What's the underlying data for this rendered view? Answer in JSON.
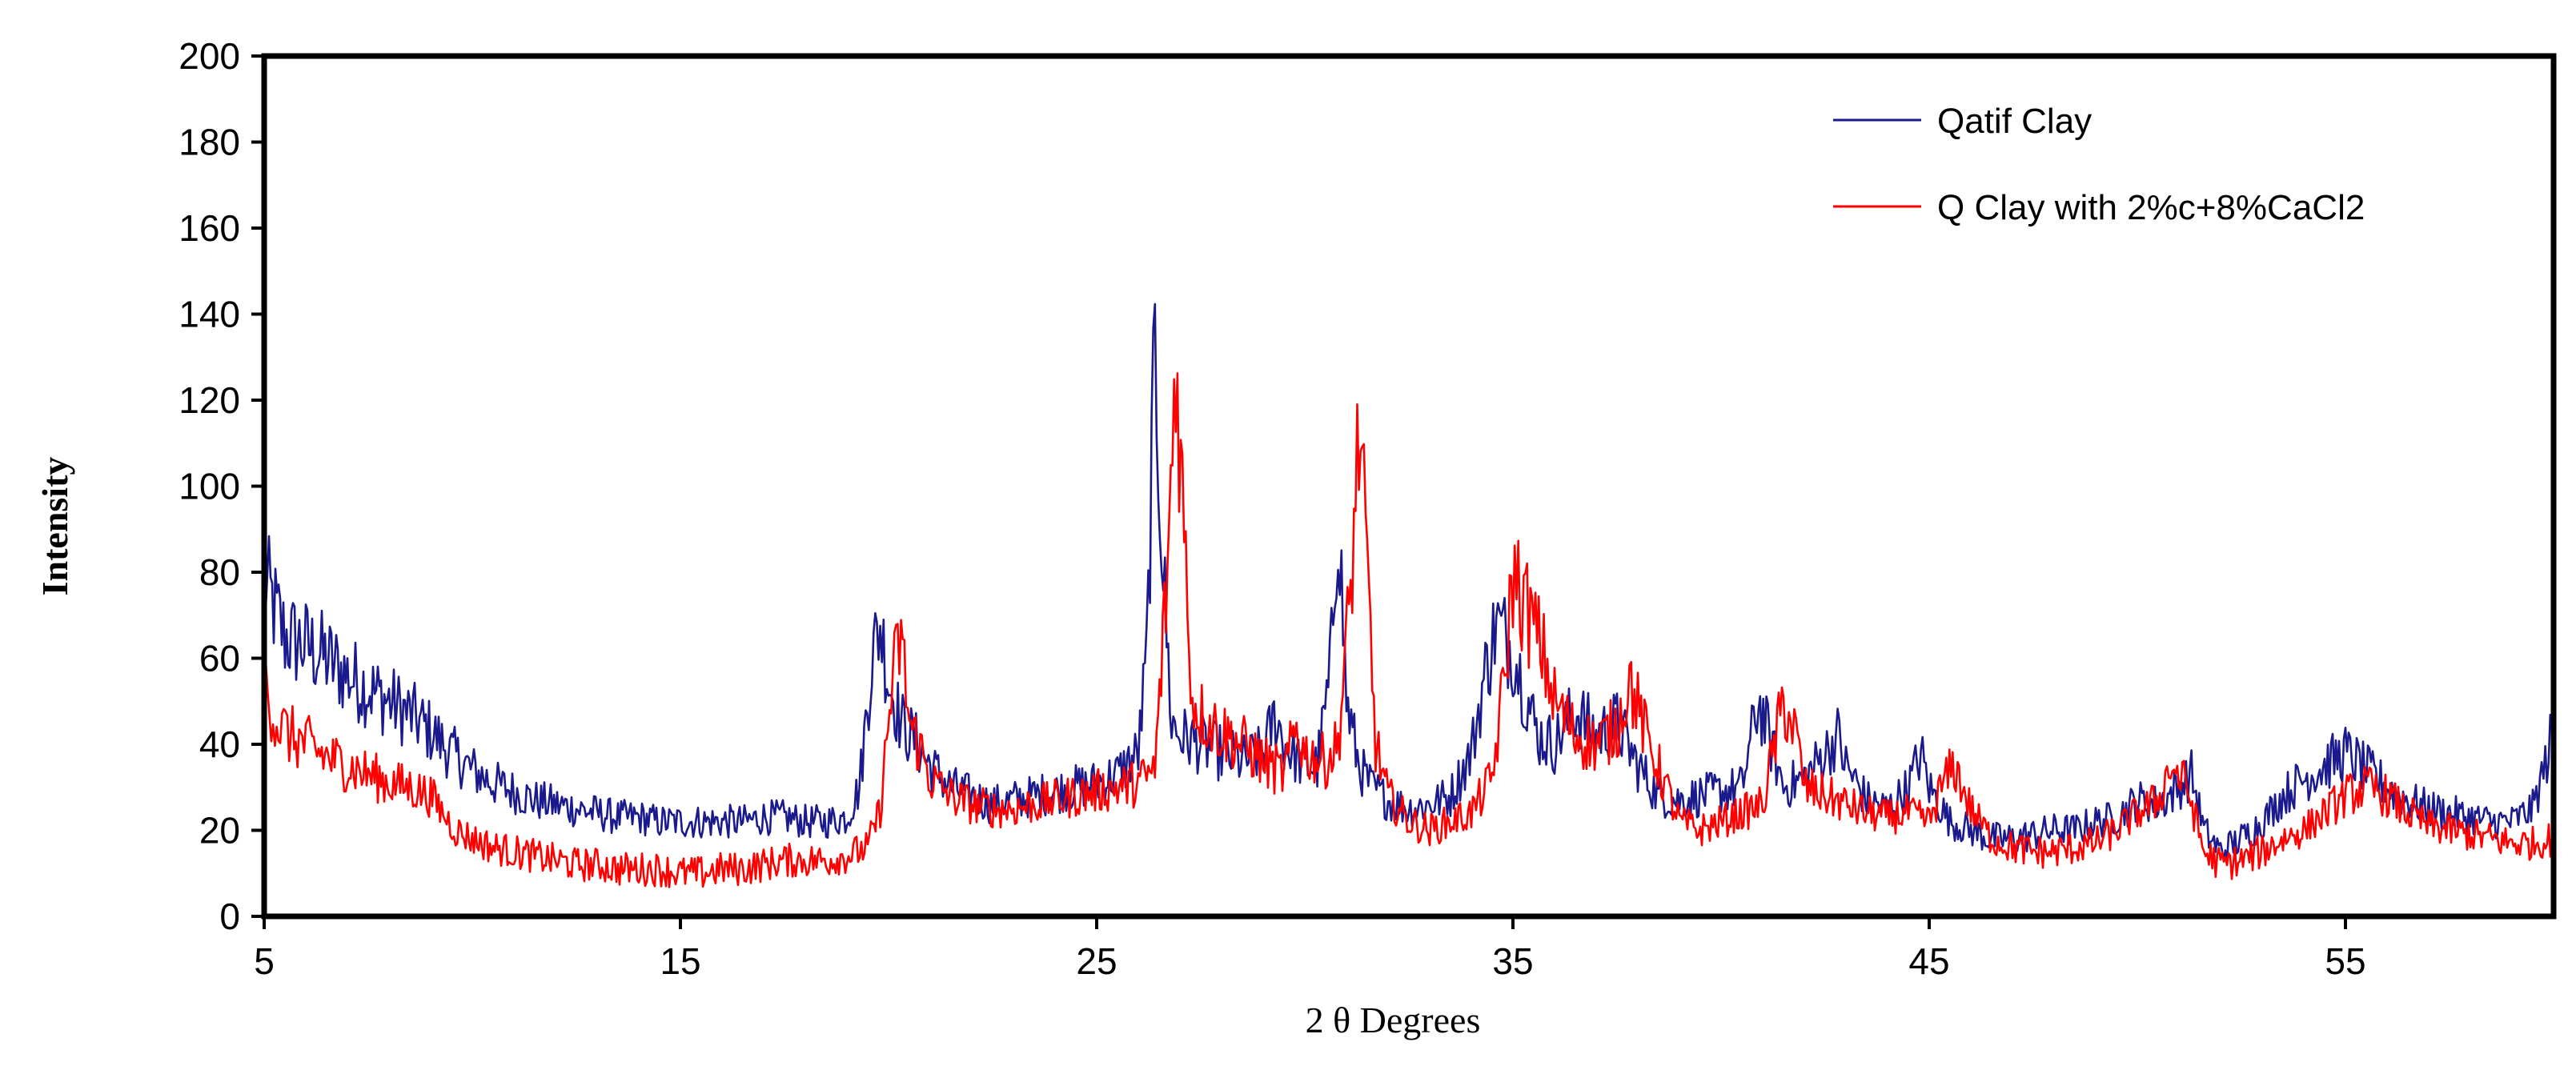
{
  "chart_data": {
    "type": "line",
    "xlabel": "2 θ Degrees",
    "ylabel": "Intensity",
    "xlim": [
      5,
      60
    ],
    "ylim": [
      0,
      200
    ],
    "xticks": [
      5,
      15,
      25,
      35,
      45,
      55
    ],
    "yticks": [
      0,
      20,
      40,
      60,
      80,
      100,
      120,
      140,
      160,
      180,
      200
    ],
    "grid": false,
    "legend_position": "top-right",
    "series": [
      {
        "name": "Qatif Clay",
        "color": "#1a1a8c",
        "points": [
          [
            5,
            78
          ],
          [
            5.5,
            65
          ],
          [
            6,
            63
          ],
          [
            6.5,
            60
          ],
          [
            7,
            56
          ],
          [
            7.5,
            53
          ],
          [
            8,
            50
          ],
          [
            8.5,
            47
          ],
          [
            9,
            43
          ],
          [
            9.5,
            38
          ],
          [
            10,
            34
          ],
          [
            10.5,
            31
          ],
          [
            11,
            29
          ],
          [
            11.5,
            27
          ],
          [
            12,
            26
          ],
          [
            12.5,
            25
          ],
          [
            13,
            24
          ],
          [
            13.5,
            23
          ],
          [
            14,
            23
          ],
          [
            14.5,
            22
          ],
          [
            15,
            22
          ],
          [
            15.5,
            22
          ],
          [
            16,
            22
          ],
          [
            16.5,
            22
          ],
          [
            17,
            23
          ],
          [
            17.5,
            23
          ],
          [
            18,
            22
          ],
          [
            18.5,
            22
          ],
          [
            19,
            23
          ],
          [
            19.3,
            30
          ],
          [
            19.6,
            60
          ],
          [
            19.8,
            68
          ],
          [
            20,
            55
          ],
          [
            20.3,
            45
          ],
          [
            20.7,
            40
          ],
          [
            21,
            35
          ],
          [
            21.5,
            30
          ],
          [
            22,
            28
          ],
          [
            22.5,
            26
          ],
          [
            23,
            27
          ],
          [
            23.5,
            28
          ],
          [
            24,
            29
          ],
          [
            24.5,
            30
          ],
          [
            25,
            31
          ],
          [
            25.5,
            33
          ],
          [
            26,
            38
          ],
          [
            26.2,
            60
          ],
          [
            26.4,
            130
          ],
          [
            26.6,
            80
          ],
          [
            26.8,
            45
          ],
          [
            27,
            42
          ],
          [
            27.5,
            40
          ],
          [
            28,
            38
          ],
          [
            28.5,
            36
          ],
          [
            29,
            38
          ],
          [
            29.3,
            47
          ],
          [
            29.5,
            40
          ],
          [
            30,
            35
          ],
          [
            30.3,
            35
          ],
          [
            30.6,
            55
          ],
          [
            30.8,
            95
          ],
          [
            31,
            50
          ],
          [
            31.3,
            35
          ],
          [
            31.6,
            30
          ],
          [
            32,
            27
          ],
          [
            32.5,
            25
          ],
          [
            33,
            26
          ],
          [
            33.5,
            28
          ],
          [
            34,
            38
          ],
          [
            34.3,
            55
          ],
          [
            34.6,
            68
          ],
          [
            35,
            62
          ],
          [
            35.3,
            52
          ],
          [
            35.6,
            42
          ],
          [
            36,
            40
          ],
          [
            36.5,
            48
          ],
          [
            37,
            42
          ],
          [
            37.5,
            45
          ],
          [
            38,
            35
          ],
          [
            38.5,
            28
          ],
          [
            39,
            27
          ],
          [
            39.5,
            28
          ],
          [
            40,
            29
          ],
          [
            40.5,
            30
          ],
          [
            40.9,
            50
          ],
          [
            41.2,
            40
          ],
          [
            41.5,
            30
          ],
          [
            42,
            32
          ],
          [
            42.5,
            38
          ],
          [
            42.8,
            42
          ],
          [
            43,
            35
          ],
          [
            43.5,
            27
          ],
          [
            44,
            25
          ],
          [
            44.5,
            30
          ],
          [
            44.8,
            38
          ],
          [
            45,
            30
          ],
          [
            45.5,
            22
          ],
          [
            46,
            20
          ],
          [
            46.5,
            18
          ],
          [
            47,
            18
          ],
          [
            47.5,
            19
          ],
          [
            48,
            20
          ],
          [
            48.5,
            20
          ],
          [
            49,
            22
          ],
          [
            49.5,
            23
          ],
          [
            50,
            27
          ],
          [
            50.5,
            26
          ],
          [
            51,
            30
          ],
          [
            51.3,
            33
          ],
          [
            51.6,
            20
          ],
          [
            52,
            15
          ],
          [
            52.5,
            18
          ],
          [
            53,
            22
          ],
          [
            53.5,
            28
          ],
          [
            54,
            32
          ],
          [
            54.5,
            35
          ],
          [
            55,
            38
          ],
          [
            55.5,
            34
          ],
          [
            56,
            30
          ],
          [
            56.5,
            27
          ],
          [
            57,
            25
          ],
          [
            57.5,
            24
          ],
          [
            58,
            23
          ],
          [
            58.5,
            22
          ],
          [
            59,
            22
          ],
          [
            59.5,
            25
          ],
          [
            59.8,
            35
          ],
          [
            60,
            44
          ]
        ]
      },
      {
        "name": "Q Clay with 2%c+8%CaCl2",
        "color": "#ff0000",
        "points": [
          [
            5,
            55
          ],
          [
            5.3,
            45
          ],
          [
            5.6,
            42
          ],
          [
            6,
            40
          ],
          [
            6.5,
            37
          ],
          [
            7,
            35
          ],
          [
            7.5,
            33
          ],
          [
            8,
            31
          ],
          [
            8.5,
            30
          ],
          [
            9,
            28
          ],
          [
            9.3,
            24
          ],
          [
            9.6,
            20
          ],
          [
            10,
            18
          ],
          [
            10.5,
            16
          ],
          [
            11,
            15
          ],
          [
            11.5,
            14
          ],
          [
            12,
            13
          ],
          [
            12.5,
            12
          ],
          [
            13,
            12
          ],
          [
            13.5,
            11
          ],
          [
            14,
            11
          ],
          [
            14.5,
            11
          ],
          [
            15,
            10
          ],
          [
            15.5,
            10
          ],
          [
            16,
            11
          ],
          [
            16.5,
            11
          ],
          [
            17,
            12
          ],
          [
            17.5,
            13
          ],
          [
            18,
            13
          ],
          [
            18.5,
            13
          ],
          [
            19,
            14
          ],
          [
            19.5,
            16
          ],
          [
            19.8,
            25
          ],
          [
            20.1,
            55
          ],
          [
            20.3,
            65
          ],
          [
            20.5,
            45
          ],
          [
            20.8,
            38
          ],
          [
            21,
            32
          ],
          [
            21.5,
            28
          ],
          [
            22,
            26
          ],
          [
            22.5,
            25
          ],
          [
            23,
            25
          ],
          [
            23.5,
            26
          ],
          [
            24,
            27
          ],
          [
            24.5,
            28
          ],
          [
            25,
            29
          ],
          [
            25.5,
            30
          ],
          [
            26,
            31
          ],
          [
            26.4,
            34
          ],
          [
            26.7,
            80
          ],
          [
            26.9,
            130
          ],
          [
            27.1,
            90
          ],
          [
            27.3,
            50
          ],
          [
            27.6,
            46
          ],
          [
            28,
            43
          ],
          [
            28.5,
            40
          ],
          [
            29,
            36
          ],
          [
            29.5,
            33
          ],
          [
            29.8,
            44
          ],
          [
            30,
            38
          ],
          [
            30.5,
            36
          ],
          [
            30.8,
            40
          ],
          [
            31.1,
            75
          ],
          [
            31.3,
            113
          ],
          [
            31.5,
            80
          ],
          [
            31.7,
            40
          ],
          [
            32,
            28
          ],
          [
            32.5,
            22
          ],
          [
            33,
            20
          ],
          [
            33.5,
            22
          ],
          [
            34,
            24
          ],
          [
            34.5,
            32
          ],
          [
            34.8,
            55
          ],
          [
            35,
            80
          ],
          [
            35.3,
            72
          ],
          [
            35.7,
            62
          ],
          [
            36,
            50
          ],
          [
            36.5,
            42
          ],
          [
            37,
            40
          ],
          [
            37.5,
            44
          ],
          [
            37.8,
            55
          ],
          [
            38.2,
            42
          ],
          [
            38.6,
            32
          ],
          [
            39,
            22
          ],
          [
            39.5,
            20
          ],
          [
            40,
            22
          ],
          [
            40.5,
            24
          ],
          [
            41,
            26
          ],
          [
            41.5,
            50
          ],
          [
            41.8,
            42
          ],
          [
            42,
            30
          ],
          [
            42.5,
            28
          ],
          [
            43,
            26
          ],
          [
            43.5,
            24
          ],
          [
            44,
            23
          ],
          [
            44.5,
            24
          ],
          [
            45,
            22
          ],
          [
            45.3,
            30
          ],
          [
            45.6,
            35
          ],
          [
            46,
            25
          ],
          [
            46.5,
            18
          ],
          [
            47,
            16
          ],
          [
            47.5,
            15
          ],
          [
            48,
            15
          ],
          [
            48.5,
            16
          ],
          [
            49,
            17
          ],
          [
            49.5,
            20
          ],
          [
            50,
            24
          ],
          [
            50.5,
            27
          ],
          [
            50.8,
            35
          ],
          [
            51.2,
            30
          ],
          [
            51.6,
            15
          ],
          [
            52,
            12
          ],
          [
            52.5,
            13
          ],
          [
            53,
            15
          ],
          [
            53.5,
            18
          ],
          [
            54,
            20
          ],
          [
            54.5,
            24
          ],
          [
            55,
            28
          ],
          [
            55.5,
            30
          ],
          [
            56,
            28
          ],
          [
            56.5,
            24
          ],
          [
            57,
            21
          ],
          [
            57.5,
            20
          ],
          [
            58,
            19
          ],
          [
            58.5,
            18
          ],
          [
            59,
            17
          ],
          [
            59.5,
            17
          ],
          [
            60,
            18
          ]
        ]
      }
    ]
  }
}
